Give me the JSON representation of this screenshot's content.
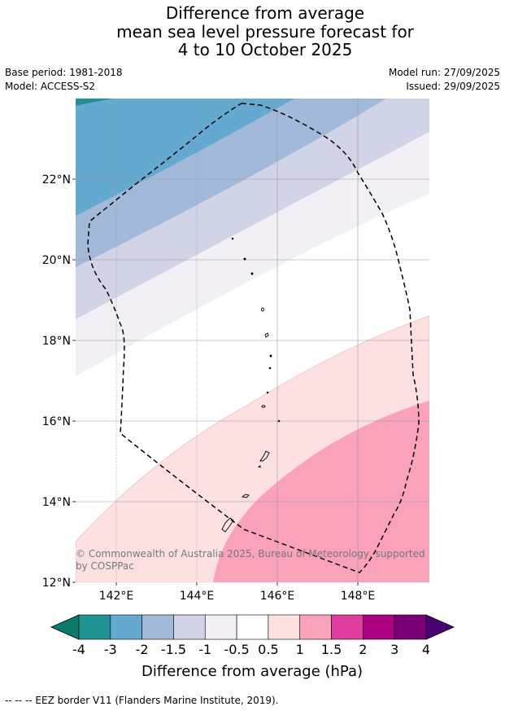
{
  "title": {
    "line1": "Difference from average",
    "line2": "mean sea level pressure forecast for",
    "line3": "4 to 10 October 2025"
  },
  "meta": {
    "base_period": "Base period: 1981-2018",
    "model": "Model: ACCESS-S2",
    "model_run": "Model run: 27/09/2025",
    "issued": "Issued: 29/09/2025"
  },
  "map": {
    "lat_labels": [
      "22°N",
      "20°N",
      "18°N",
      "16°N",
      "14°N",
      "12°N"
    ],
    "lon_labels": [
      "142°E",
      "144°E",
      "146°E",
      "148°E"
    ],
    "copyright_line1": "© Commonwealth of Australia 2025, Bureau of Meteorology, supported",
    "copyright_line2": "by COSPPac"
  },
  "colorbar": {
    "title": "Difference from average (hPa)",
    "tick_labels": [
      "-4",
      "-3",
      "-2",
      "-1.5",
      "-1",
      "-0.5",
      "0.5",
      "1",
      "1.5",
      "2",
      "3",
      "4"
    ],
    "colors": [
      "#1f9393",
      "#63a9d0",
      "#a3b9da",
      "#d1d3e7",
      "#f2eff5",
      "#ffffff",
      "#fde1e1",
      "#f9a2b9",
      "#df3c9e",
      "#ad0080",
      "#7a0077"
    ],
    "under_color": "#0c7a6b",
    "over_color": "#4b0073"
  },
  "footer": {
    "text": "--  --  -- EEZ border V11 (Flanders Marine Institute, 2019)."
  }
}
